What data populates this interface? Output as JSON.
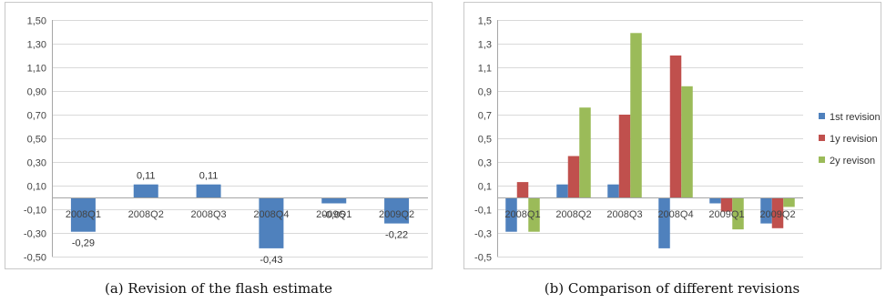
{
  "captions": {
    "a": "(a) Revision of the flash estimate",
    "b": "(b) Comparison of different revisions"
  },
  "chart_data": [
    {
      "type": "bar",
      "title": "",
      "xlabel": "",
      "ylabel": "",
      "ylim": [
        -0.5,
        1.5
      ],
      "yticks": [
        "-0,50",
        "-0,30",
        "-0,10",
        "0,10",
        "0,30",
        "0,50",
        "0,70",
        "0,90",
        "1,10",
        "1,30",
        "1,50"
      ],
      "grid": true,
      "legend": "none",
      "categories": [
        "2008Q1",
        "2008Q2",
        "2008Q3",
        "2008Q4",
        "2009Q1",
        "2009Q2"
      ],
      "series": [
        {
          "values": [
            -0.29,
            0.11,
            0.11,
            -0.43,
            -0.05,
            -0.22
          ],
          "labels": [
            "-0,29",
            "0,11",
            "0,11",
            "-0,43",
            "-0,05",
            "-0,22"
          ],
          "color": "#4f81bd"
        }
      ]
    },
    {
      "type": "bar",
      "title": "",
      "xlabel": "",
      "ylabel": "",
      "ylim": [
        -0.5,
        1.5
      ],
      "yticks": [
        "-0,5",
        "-0,3",
        "-0,1",
        "0,1",
        "0,3",
        "0,5",
        "0,7",
        "0,9",
        "1,1",
        "1,3",
        "1,5"
      ],
      "grid": true,
      "legend": "right",
      "categories": [
        "2008Q1",
        "2008Q2",
        "2008Q3",
        "2008Q4",
        "2009Q1",
        "2009Q2"
      ],
      "series": [
        {
          "name": "1st revision",
          "values": [
            -0.29,
            0.11,
            0.11,
            -0.43,
            -0.05,
            -0.22
          ],
          "color": "#4f81bd"
        },
        {
          "name": "1y revision",
          "values": [
            0.13,
            0.35,
            0.7,
            1.2,
            -0.12,
            -0.26
          ],
          "color": "#c0504d"
        },
        {
          "name": "2y revison",
          "values": [
            -0.29,
            0.76,
            1.39,
            0.94,
            -0.27,
            -0.08
          ],
          "color": "#9bbb59"
        }
      ]
    }
  ]
}
